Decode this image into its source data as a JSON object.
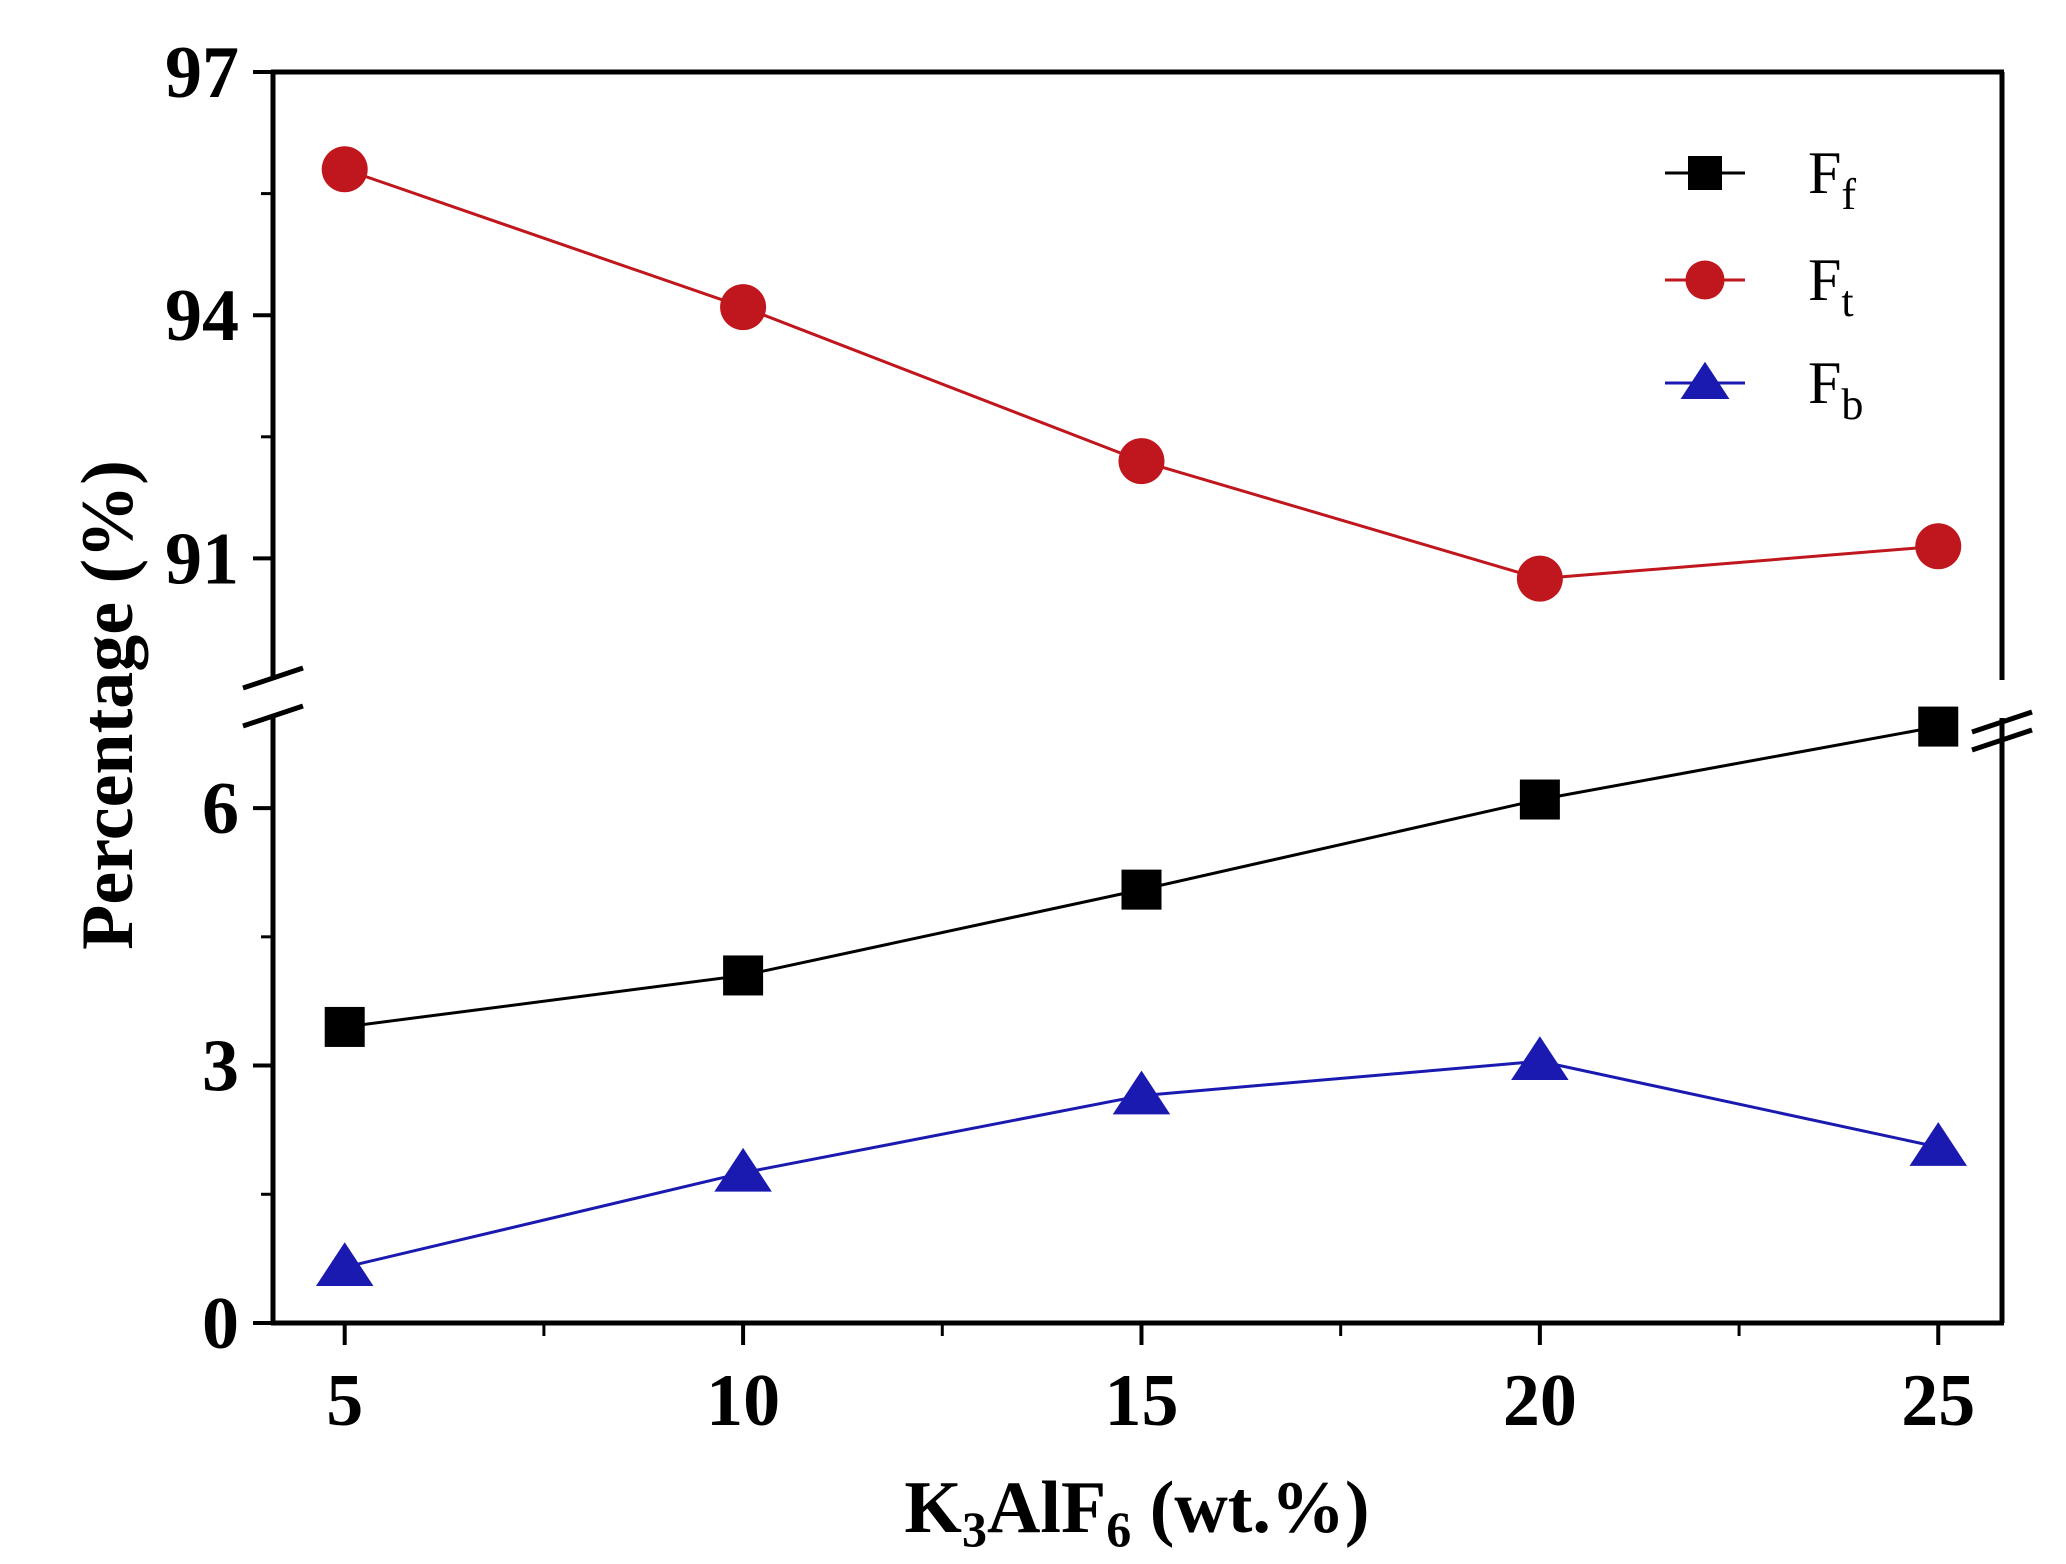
{
  "chart_data": {
    "type": "line",
    "title": "",
    "xlabel_parts": [
      "K",
      "3",
      "AlF",
      "6",
      " (wt.%)"
    ],
    "ylabel": "Percentage (%)",
    "x": [
      5,
      10,
      15,
      20,
      25
    ],
    "xticks": [
      "5",
      "10",
      "15",
      "20",
      "25"
    ],
    "xlim": [
      4.1,
      25.8
    ],
    "broken_axis": true,
    "lower_ylim": [
      0,
      7.05
    ],
    "lower_yticks": [
      "0",
      "3",
      "6"
    ],
    "upper_ylim": [
      89.5,
      97
    ],
    "upper_yticks": [
      "91",
      "94",
      "97"
    ],
    "series": [
      {
        "name": "F",
        "sub": "f",
        "segment": "lower",
        "marker": "square",
        "color": "#000000",
        "values": [
          3.45,
          4.05,
          5.05,
          6.1,
          6.95
        ]
      },
      {
        "name": "F",
        "sub": "t",
        "segment": "upper",
        "marker": "circle",
        "color": "#c0161d",
        "values": [
          95.8,
          94.1,
          92.2,
          90.75,
          91.15
        ]
      },
      {
        "name": "F",
        "sub": "b",
        "segment": "lower",
        "marker": "triangle",
        "color": "#1a1ab0",
        "values": [
          0.65,
          1.75,
          2.65,
          3.05,
          2.05
        ]
      }
    ],
    "legend_position": "top-right"
  }
}
